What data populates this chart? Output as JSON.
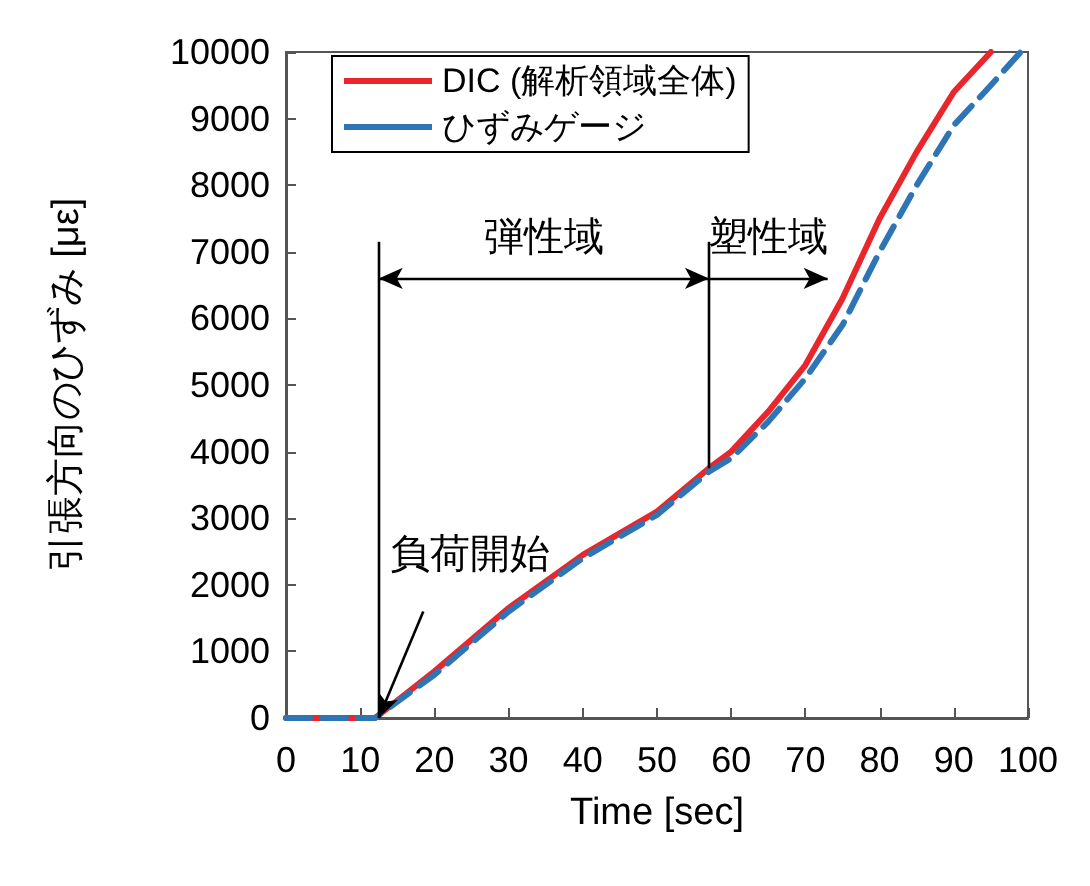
{
  "chart_data": {
    "type": "line",
    "xlabel": "Time [sec]",
    "ylabel": "引張方向のひずみ [με]",
    "xlim": [
      0,
      100
    ],
    "xticks": [
      0,
      10,
      20,
      30,
      40,
      50,
      60,
      70,
      80,
      90,
      100
    ],
    "ylim": [
      0,
      10000
    ],
    "yticks": [
      0,
      1000,
      2000,
      3000,
      4000,
      5000,
      6000,
      7000,
      8000,
      9000,
      10000
    ],
    "grid": false,
    "legend": "top left",
    "marker": "none",
    "series": [
      {
        "name": "DIC (解析領域全体)",
        "color": "#e8262b",
        "line_style": "solid",
        "x": [
          0,
          12,
          20,
          30,
          40,
          50,
          57,
          60,
          65,
          70,
          75,
          80,
          85,
          90,
          95
        ],
        "values": [
          0,
          0,
          700,
          1650,
          2450,
          3100,
          3750,
          4000,
          4600,
          5300,
          6300,
          7500,
          8500,
          9400,
          10000
        ]
      },
      {
        "name": "ひずみゲージ",
        "color": "#2e75b6",
        "line_style": "dashed",
        "x": [
          0,
          12,
          20,
          30,
          40,
          50,
          57,
          60,
          65,
          70,
          75,
          80,
          85,
          90,
          95,
          99
        ],
        "values": [
          0,
          0,
          650,
          1600,
          2400,
          3050,
          3700,
          3900,
          4450,
          5100,
          5900,
          7000,
          8000,
          8900,
          9500,
          10000
        ]
      }
    ],
    "ref_lines": [
      {
        "axis": "x",
        "value": 12.5,
        "label": null
      },
      {
        "axis": "x",
        "value": 57,
        "label": null
      }
    ],
    "annotations": [
      "弾性域",
      "塑性域",
      {
        "text": "負荷開始",
        "x": 12.5,
        "y": 0
      }
    ]
  }
}
